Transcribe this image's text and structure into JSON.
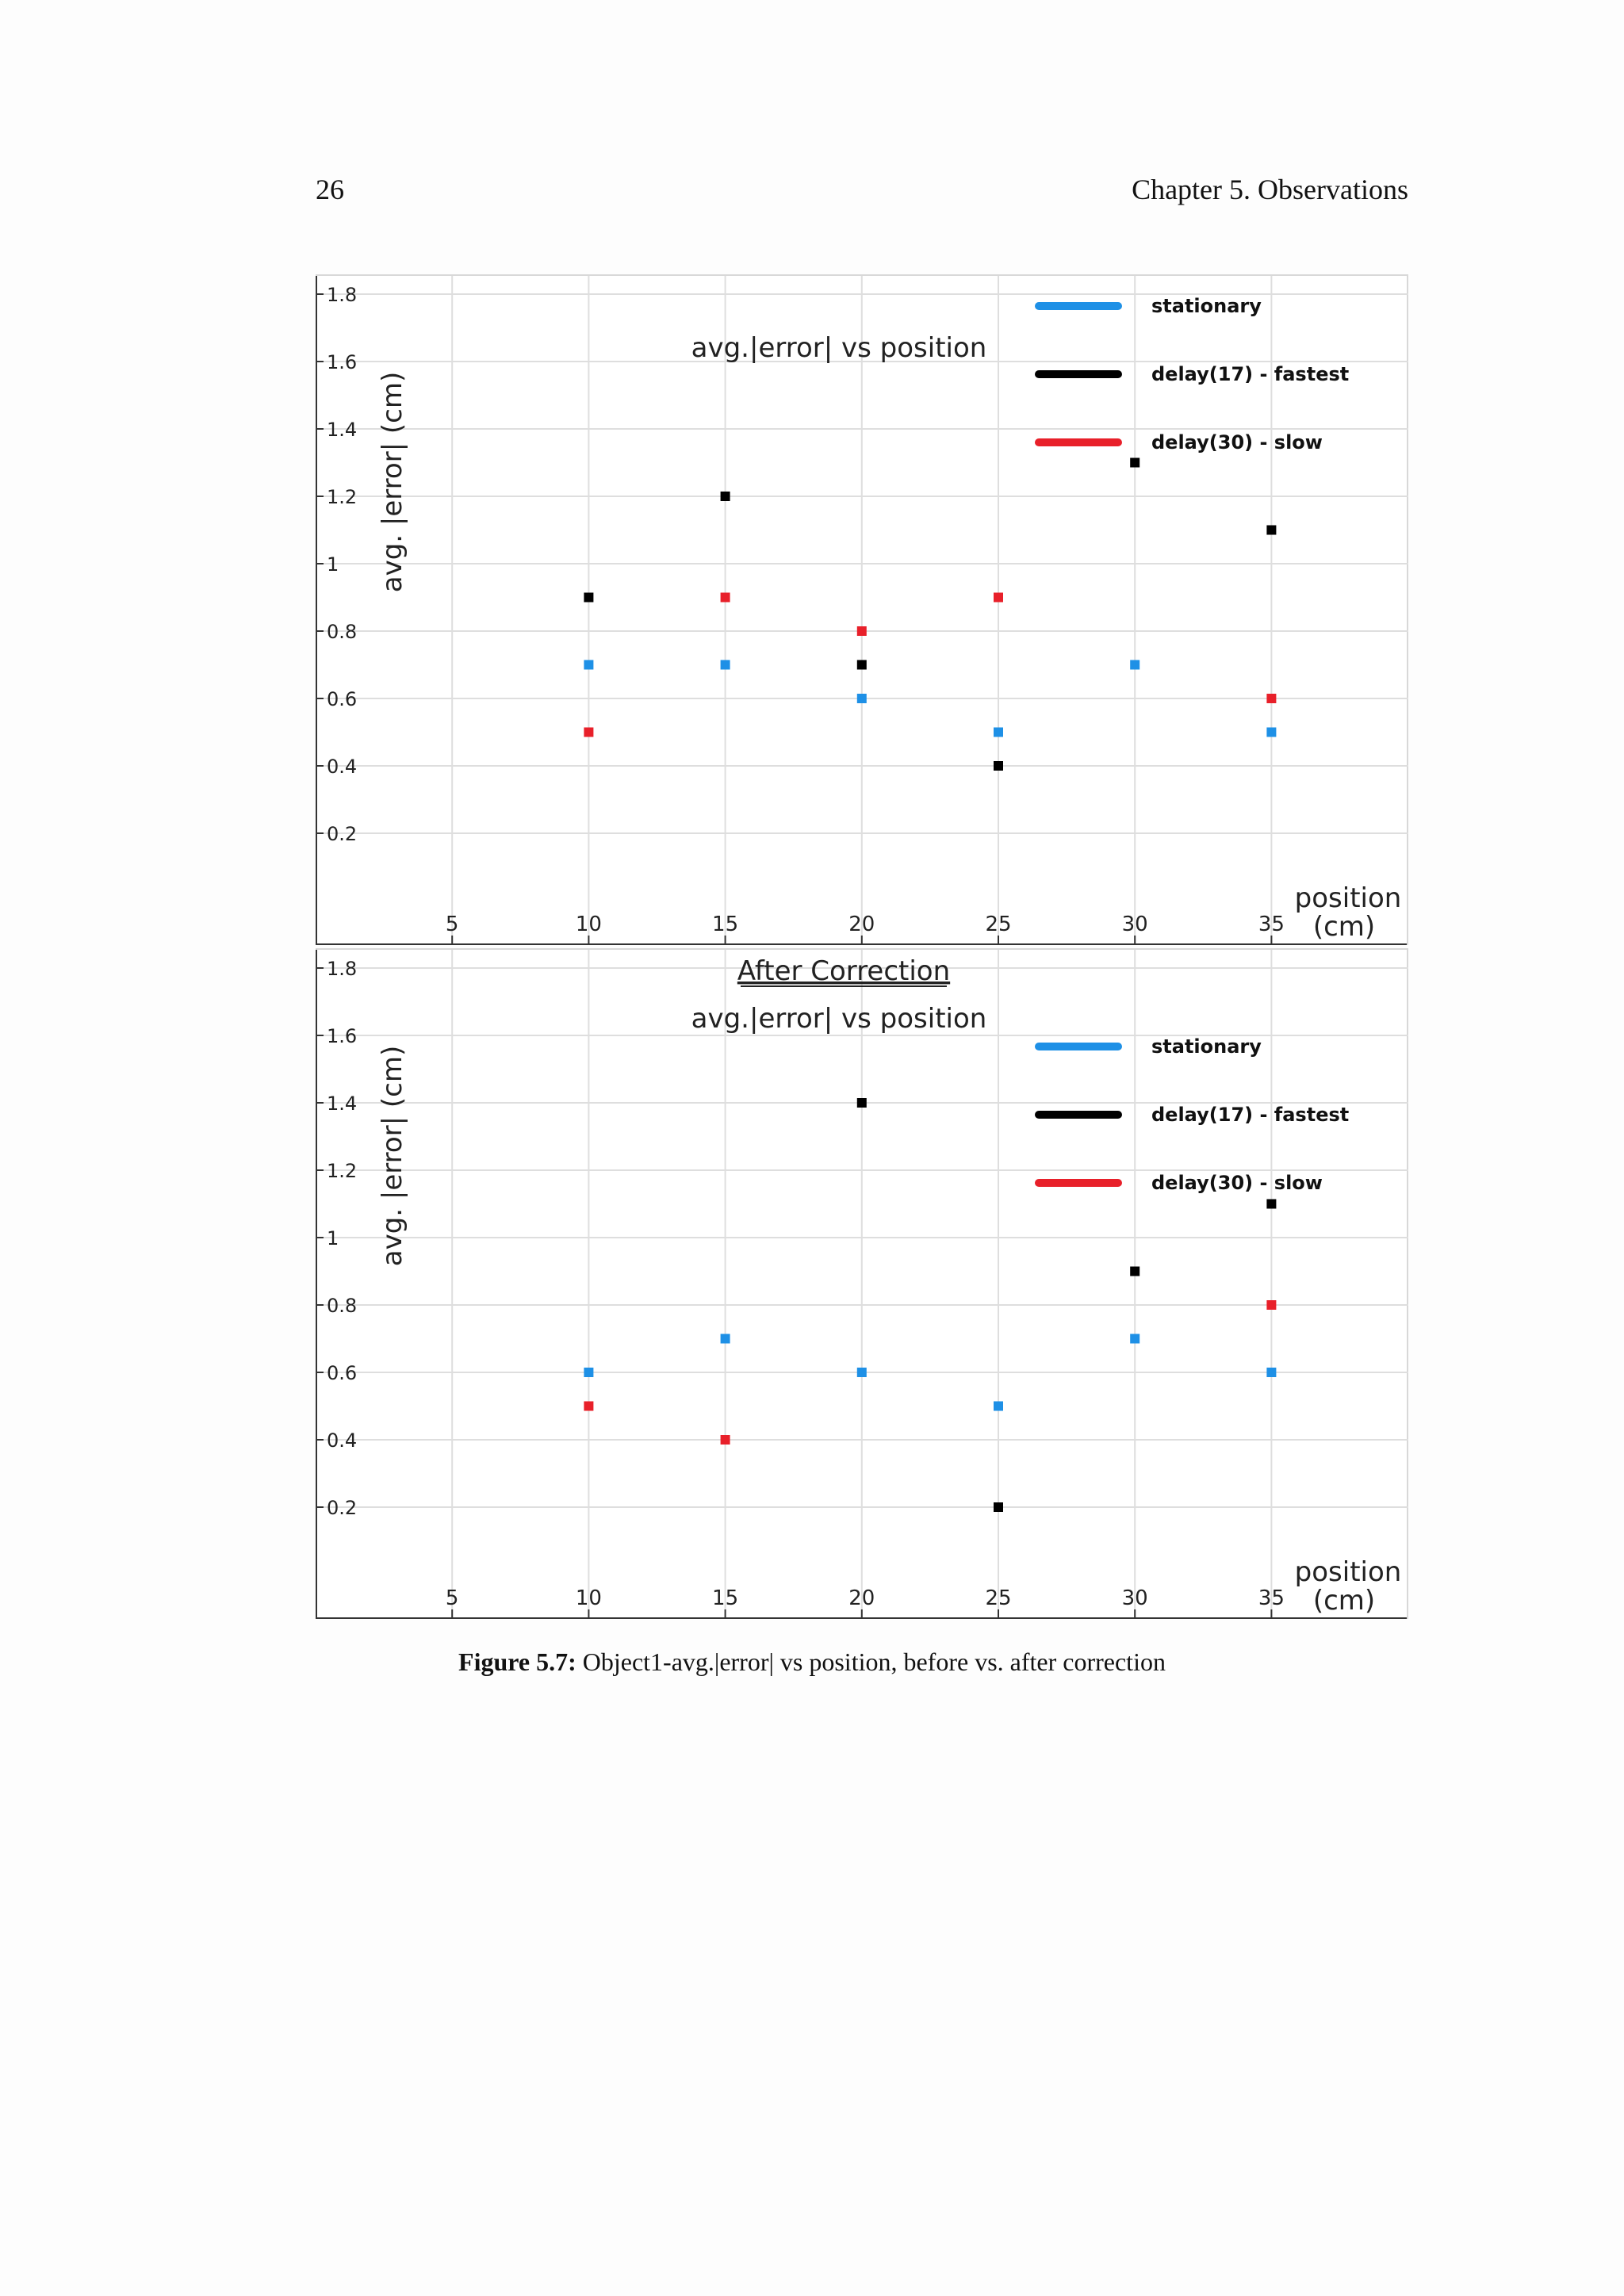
{
  "header": {
    "page_number": "26",
    "running_head": "Chapter 5.  Observations"
  },
  "figure": {
    "label": "Figure 5.7:",
    "caption": "Object1-avg.|error|  vs position, before vs. after correction"
  },
  "chart_data": [
    {
      "type": "scatter",
      "title": "avg.|error| vs position",
      "subtitle": "",
      "xlabel": "position (cm)",
      "ylabel": "avg.  |error| (cm)",
      "xlim": [
        0,
        38
      ],
      "ylim": [
        0,
        2.0
      ],
      "xticks": [
        5,
        10,
        15,
        20,
        25,
        30,
        35
      ],
      "yticks": [
        0.2,
        0.4,
        0.6,
        0.8,
        1,
        1.2,
        1.4,
        1.6,
        1.8
      ],
      "ytick_labels": [
        "0.2",
        "0.4",
        "0.6",
        "0.8",
        "1",
        "1.2",
        "1.4",
        "1.6",
        "1.8"
      ],
      "grid": true,
      "legend_position": "top-right",
      "series": [
        {
          "name": "stationary",
          "color": "#1e90e6",
          "x": [
            10,
            15,
            20,
            25,
            30,
            35
          ],
          "y": [
            0.7,
            0.7,
            0.6,
            0.5,
            0.7,
            0.5
          ]
        },
        {
          "name": "delay(17) - fastest",
          "color": "#000000",
          "x": [
            10,
            15,
            20,
            25,
            30,
            35
          ],
          "y": [
            0.9,
            1.2,
            0.7,
            0.4,
            1.3,
            1.1
          ]
        },
        {
          "name": "delay(30) - slow",
          "color": "#e8202a",
          "x": [
            10,
            15,
            20,
            25,
            30,
            35
          ],
          "y": [
            0.5,
            0.9,
            0.8,
            0.9,
            null,
            0.6
          ]
        }
      ]
    },
    {
      "type": "scatter",
      "title": "avg.|error| vs position",
      "subtitle": "After Correction",
      "xlabel": "position (cm)",
      "ylabel": "avg.  |error| (cm)",
      "xlim": [
        0,
        38
      ],
      "ylim": [
        0,
        2.0
      ],
      "xticks": [
        5,
        10,
        15,
        20,
        25,
        30,
        35
      ],
      "yticks": [
        0.2,
        0.4,
        0.6,
        0.8,
        1,
        1.2,
        1.4,
        1.6,
        1.8
      ],
      "ytick_labels": [
        "0.2",
        "0.4",
        "0.6",
        "0.8",
        "1",
        "1.2",
        "1.4",
        "1.6",
        "1.8"
      ],
      "grid": true,
      "legend_position": "top-right",
      "series": [
        {
          "name": "stationary",
          "color": "#1e90e6",
          "x": [
            10,
            15,
            20,
            25,
            30,
            35
          ],
          "y": [
            0.6,
            0.7,
            0.6,
            0.5,
            0.7,
            0.6
          ]
        },
        {
          "name": "delay(17) - fastest",
          "color": "#000000",
          "x": [
            20,
            25,
            30,
            35
          ],
          "y": [
            1.4,
            0.2,
            0.9,
            1.1
          ]
        },
        {
          "name": "delay(30) - slow",
          "color": "#e8202a",
          "x": [
            10,
            15,
            35
          ],
          "y": [
            0.5,
            0.4,
            0.8
          ]
        }
      ]
    }
  ]
}
